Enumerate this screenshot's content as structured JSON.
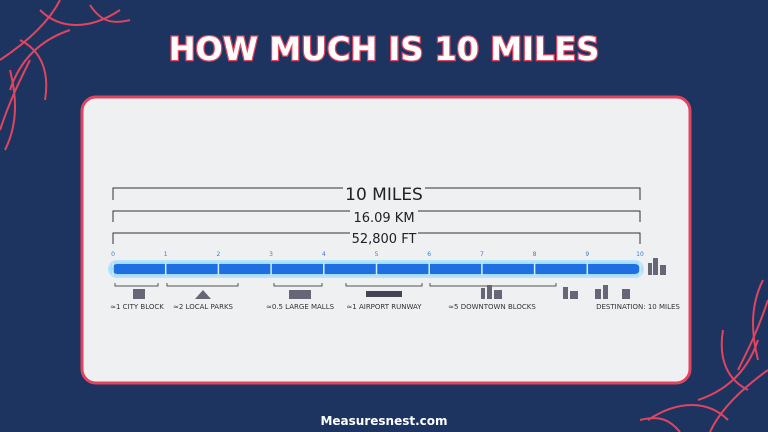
{
  "header": {
    "title": "HOW MUCH IS 10 MILES"
  },
  "diagram": {
    "distance": "10 MILES",
    "km": "16.09 KM",
    "ft": "52,800 FT",
    "ticks": [
      "0",
      "1",
      "2",
      "3",
      "4",
      "5",
      "6",
      "7",
      "8",
      "9",
      "10"
    ],
    "landmarks": [
      "≈1 CITY BLOCK",
      "≈2 LOCAL PARKS",
      "≈0.5 LARGE MALLS",
      "≈1 AIRPORT RUNWAY",
      "≈5 DOWNTOWN BLOCKS",
      "DESTINATION: 10 MILES"
    ]
  },
  "footer": {
    "site": "Measuresnest.com"
  }
}
